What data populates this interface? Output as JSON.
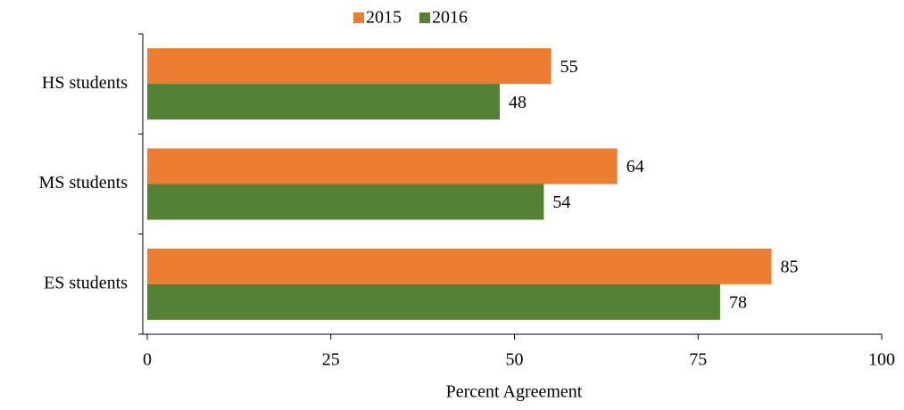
{
  "chart_data": {
    "type": "hbar",
    "categories": [
      "HS students",
      "MS students",
      "ES students"
    ],
    "series": [
      {
        "name": "2015",
        "color": "#ed7d31",
        "values": [
          55,
          64,
          85
        ]
      },
      {
        "name": "2016",
        "color": "#548235",
        "values": [
          48,
          54,
          78
        ]
      }
    ],
    "xlabel": "Percent Agreement",
    "xlim": [
      0,
      100
    ],
    "xticks": [
      0,
      25,
      50,
      75,
      100
    ],
    "legend": "top"
  }
}
